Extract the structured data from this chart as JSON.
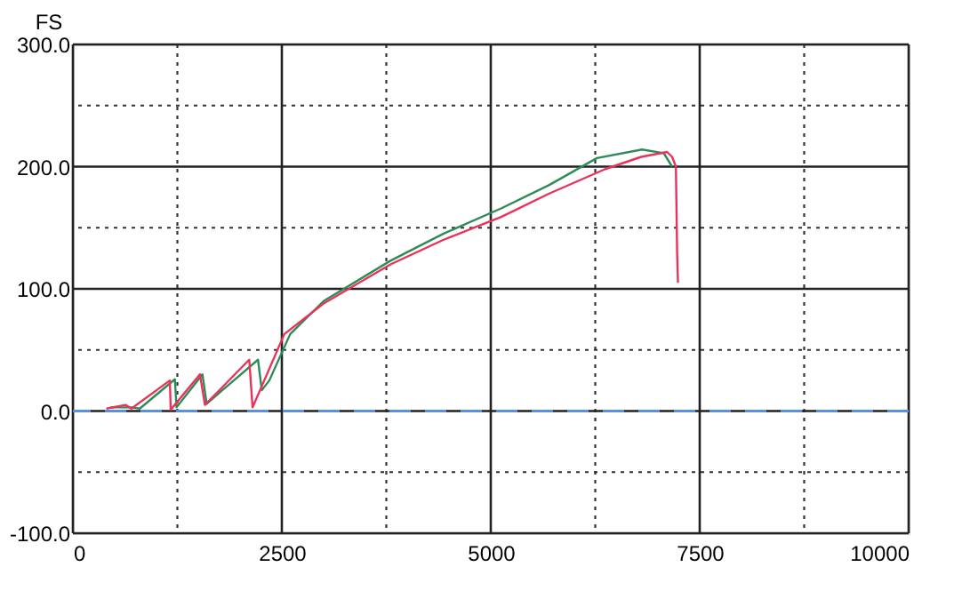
{
  "chart_data": {
    "type": "line",
    "ylabel": "FS",
    "xlim": [
      0,
      10000
    ],
    "ylim": [
      -100,
      300
    ],
    "xticks": [
      0,
      {
        "value": 1250,
        "label": null
      },
      2500,
      {
        "value": 3750,
        "label": null
      },
      5000,
      {
        "value": 6250,
        "label": null
      },
      7500,
      {
        "value": 8750,
        "label": null
      },
      10000
    ],
    "yticks": [
      {
        "value": -100,
        "label": "-100.0"
      },
      {
        "value": -50,
        "label": null
      },
      {
        "value": 0,
        "label": "0.0"
      },
      {
        "value": 50,
        "label": null
      },
      {
        "value": 100,
        "label": "100.0"
      },
      {
        "value": 150,
        "label": null
      },
      {
        "value": 200,
        "label": "200.0"
      },
      {
        "value": 250,
        "label": null
      },
      {
        "value": 300,
        "label": "300.0"
      }
    ],
    "grid": true,
    "line_style": "solid",
    "marker": "none",
    "ref_lines": [
      {
        "axis": "y",
        "value": 0,
        "color": "#5b8ee6",
        "line_style": "dashed"
      }
    ],
    "series": [
      {
        "color": "#2e8b57",
        "x": [
          450,
          700,
          800,
          1220,
          1240,
          1550,
          1600,
          2215,
          2260,
          2350,
          2600,
          3000,
          3800,
          4430,
          5130,
          5700,
          6270,
          6810,
          7070,
          7170
        ],
        "values": [
          3,
          3,
          2,
          26,
          3,
          30,
          6,
          42,
          17,
          25,
          63,
          90,
          123,
          145,
          166,
          185,
          207,
          214,
          211,
          200
        ]
      },
      {
        "color": "#e8335a",
        "x": [
          400,
          630,
          700,
          1160,
          1170,
          1520,
          1580,
          2110,
          2150,
          2530,
          3000,
          3800,
          4430,
          5130,
          5700,
          6370,
          6800,
          7110,
          7170,
          7215,
          7230,
          7240
        ],
        "values": [
          2,
          5,
          2,
          25,
          1,
          30,
          5,
          42,
          3,
          63,
          88,
          120,
          140,
          159,
          178,
          198,
          208,
          212,
          208,
          200,
          129,
          105
        ]
      }
    ]
  }
}
